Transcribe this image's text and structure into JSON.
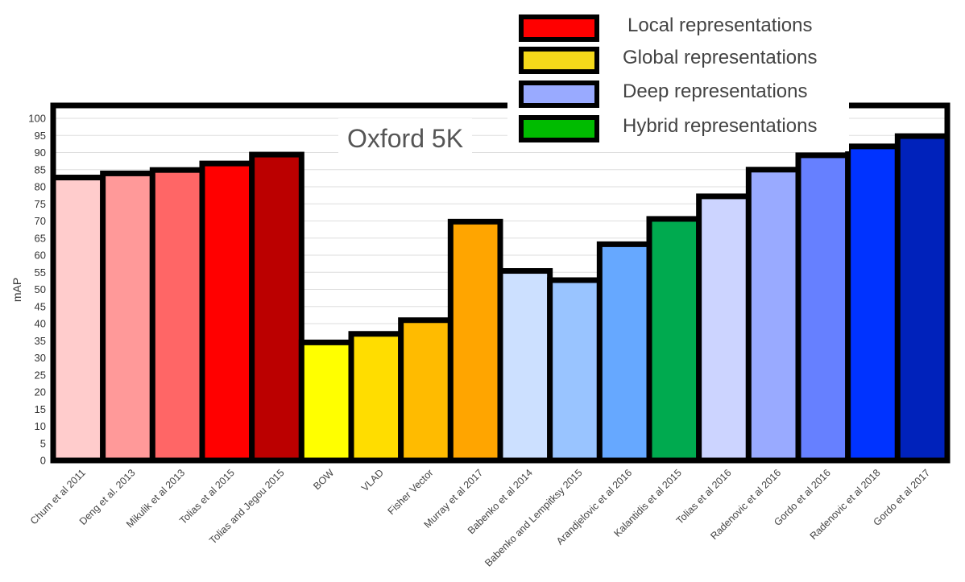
{
  "chart_data": {
    "type": "bar",
    "title": "Oxford 5K",
    "ylabel": "mAP",
    "xlabel": "",
    "ylim": [
      0,
      100
    ],
    "yticks": [
      0,
      5,
      10,
      15,
      20,
      25,
      30,
      35,
      40,
      45,
      50,
      55,
      60,
      65,
      70,
      75,
      80,
      85,
      90,
      95,
      100
    ],
    "grid": true,
    "legend_position": "top-right",
    "legend": [
      {
        "label": "Local representations",
        "color": "#ff0000"
      },
      {
        "label": "Global representations",
        "color": "#f5d91a"
      },
      {
        "label": "Deep representations",
        "color": "#99aaff"
      },
      {
        "label": "Hybrid representations",
        "color": "#00bb00"
      }
    ],
    "categories": [
      "Chum et al 2011",
      "Deng et al. 2013",
      "Mikulik et al 2013",
      "Tolias et al 2015",
      "Tolias and Jegou 2015",
      "BOW",
      "VLAD",
      "Fisher Vector",
      "Murray et al 2017",
      "Babenko et al 2014",
      "Babenko and Lempitksy 2015",
      "Arandjelovic et al 2016",
      "Kalantidis et al 2015",
      "Tolias et al 2016",
      "Radenovic et al 2016",
      "Gordo et al 2016",
      "Radenovic et al 2018",
      "Gordo et al 2017"
    ],
    "values": [
      82.7,
      83.9,
      84.9,
      86.8,
      89.4,
      34.5,
      37.0,
      41.0,
      69.8,
      55.4,
      52.7,
      63.2,
      70.6,
      77.2,
      85.0,
      89.2,
      91.8,
      94.8
    ],
    "colors": [
      "#ffcccc",
      "#ff9999",
      "#ff6666",
      "#ff0000",
      "#bb0000",
      "#ffff00",
      "#ffdd00",
      "#ffbb00",
      "#ffa500",
      "#cce0ff",
      "#99c4ff",
      "#66a8ff",
      "#00aa4f",
      "#ccd4ff",
      "#99aaff",
      "#6680ff",
      "#0033ff",
      "#0022bb"
    ]
  }
}
